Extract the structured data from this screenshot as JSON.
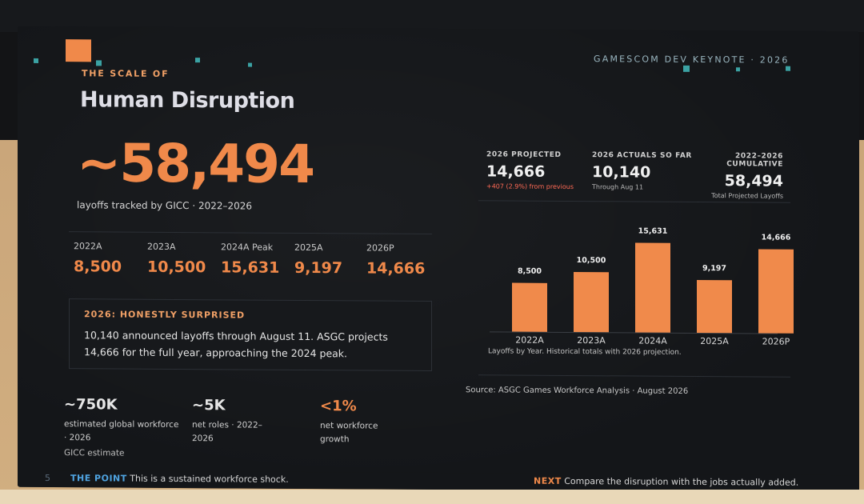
{
  "header": {
    "eyebrow": "THE SCALE OF",
    "title": "Human Disruption",
    "event": "GAMESCOM DEV KEYNOTE · 2026"
  },
  "hero": {
    "value": "~58,494",
    "caption": "layoffs tracked by GICC · 2022–2026"
  },
  "years": [
    {
      "label": "2022A",
      "value": "8,500"
    },
    {
      "label": "2023A",
      "value": "10,500"
    },
    {
      "label": "2024A Peak",
      "value": "15,631"
    },
    {
      "label": "2025A",
      "value": "9,197"
    },
    {
      "label": "2026P",
      "value": "14,666"
    }
  ],
  "callout": {
    "heading": "2026: HONESTLY SURPRISED",
    "body": "10,140 announced layoffs through August 11. ASGC projects 14,666 for the full year, approaching the 2024 peak."
  },
  "stats": [
    {
      "value": "~750K",
      "desc": "estimated global workforce · 2026",
      "extra": "GICC estimate"
    },
    {
      "value": "~5K",
      "desc": "net roles · 2022–2026",
      "extra": ""
    },
    {
      "value": "<1%",
      "desc": "net workforce growth",
      "extra": ""
    }
  ],
  "kpis": [
    {
      "label": "2026 PROJECTED",
      "value": "14,666",
      "sub": "+407 (2.9%) from previous"
    },
    {
      "label": "2026 ACTUALS SO FAR",
      "value": "10,140",
      "sub": "Through Aug 11"
    },
    {
      "label": "2022–2026 CUMULATIVE",
      "value": "58,494",
      "sub": "Total Projected Layoffs"
    }
  ],
  "chart_data": {
    "type": "bar",
    "categories": [
      "2022A",
      "2023A",
      "2024A",
      "2025A",
      "2026P"
    ],
    "values": [
      8500,
      10500,
      15631,
      9197,
      14666
    ],
    "data_labels": [
      "8,500",
      "10,500",
      "15,631",
      "9,197",
      "14,666"
    ],
    "caption": "Layoffs by Year. Historical totals with 2026 projection.",
    "color": "#f08a4b",
    "ylim": [
      0,
      15631
    ],
    "grid": false
  },
  "source": "Source: ASGC Games Workforce Analysis · August 2026",
  "footer": {
    "slide_number": "5",
    "point_key": "THE POINT",
    "point_text": "This is a sustained workforce shock.",
    "next_key": "NEXT",
    "next_text": "Compare the disruption with the jobs actually added."
  },
  "colors": {
    "accent": "#f0894a",
    "accent_light": "#f0a066",
    "background": "#141619",
    "point_key": "#4fa3e0",
    "negative": "#ff6a55"
  }
}
